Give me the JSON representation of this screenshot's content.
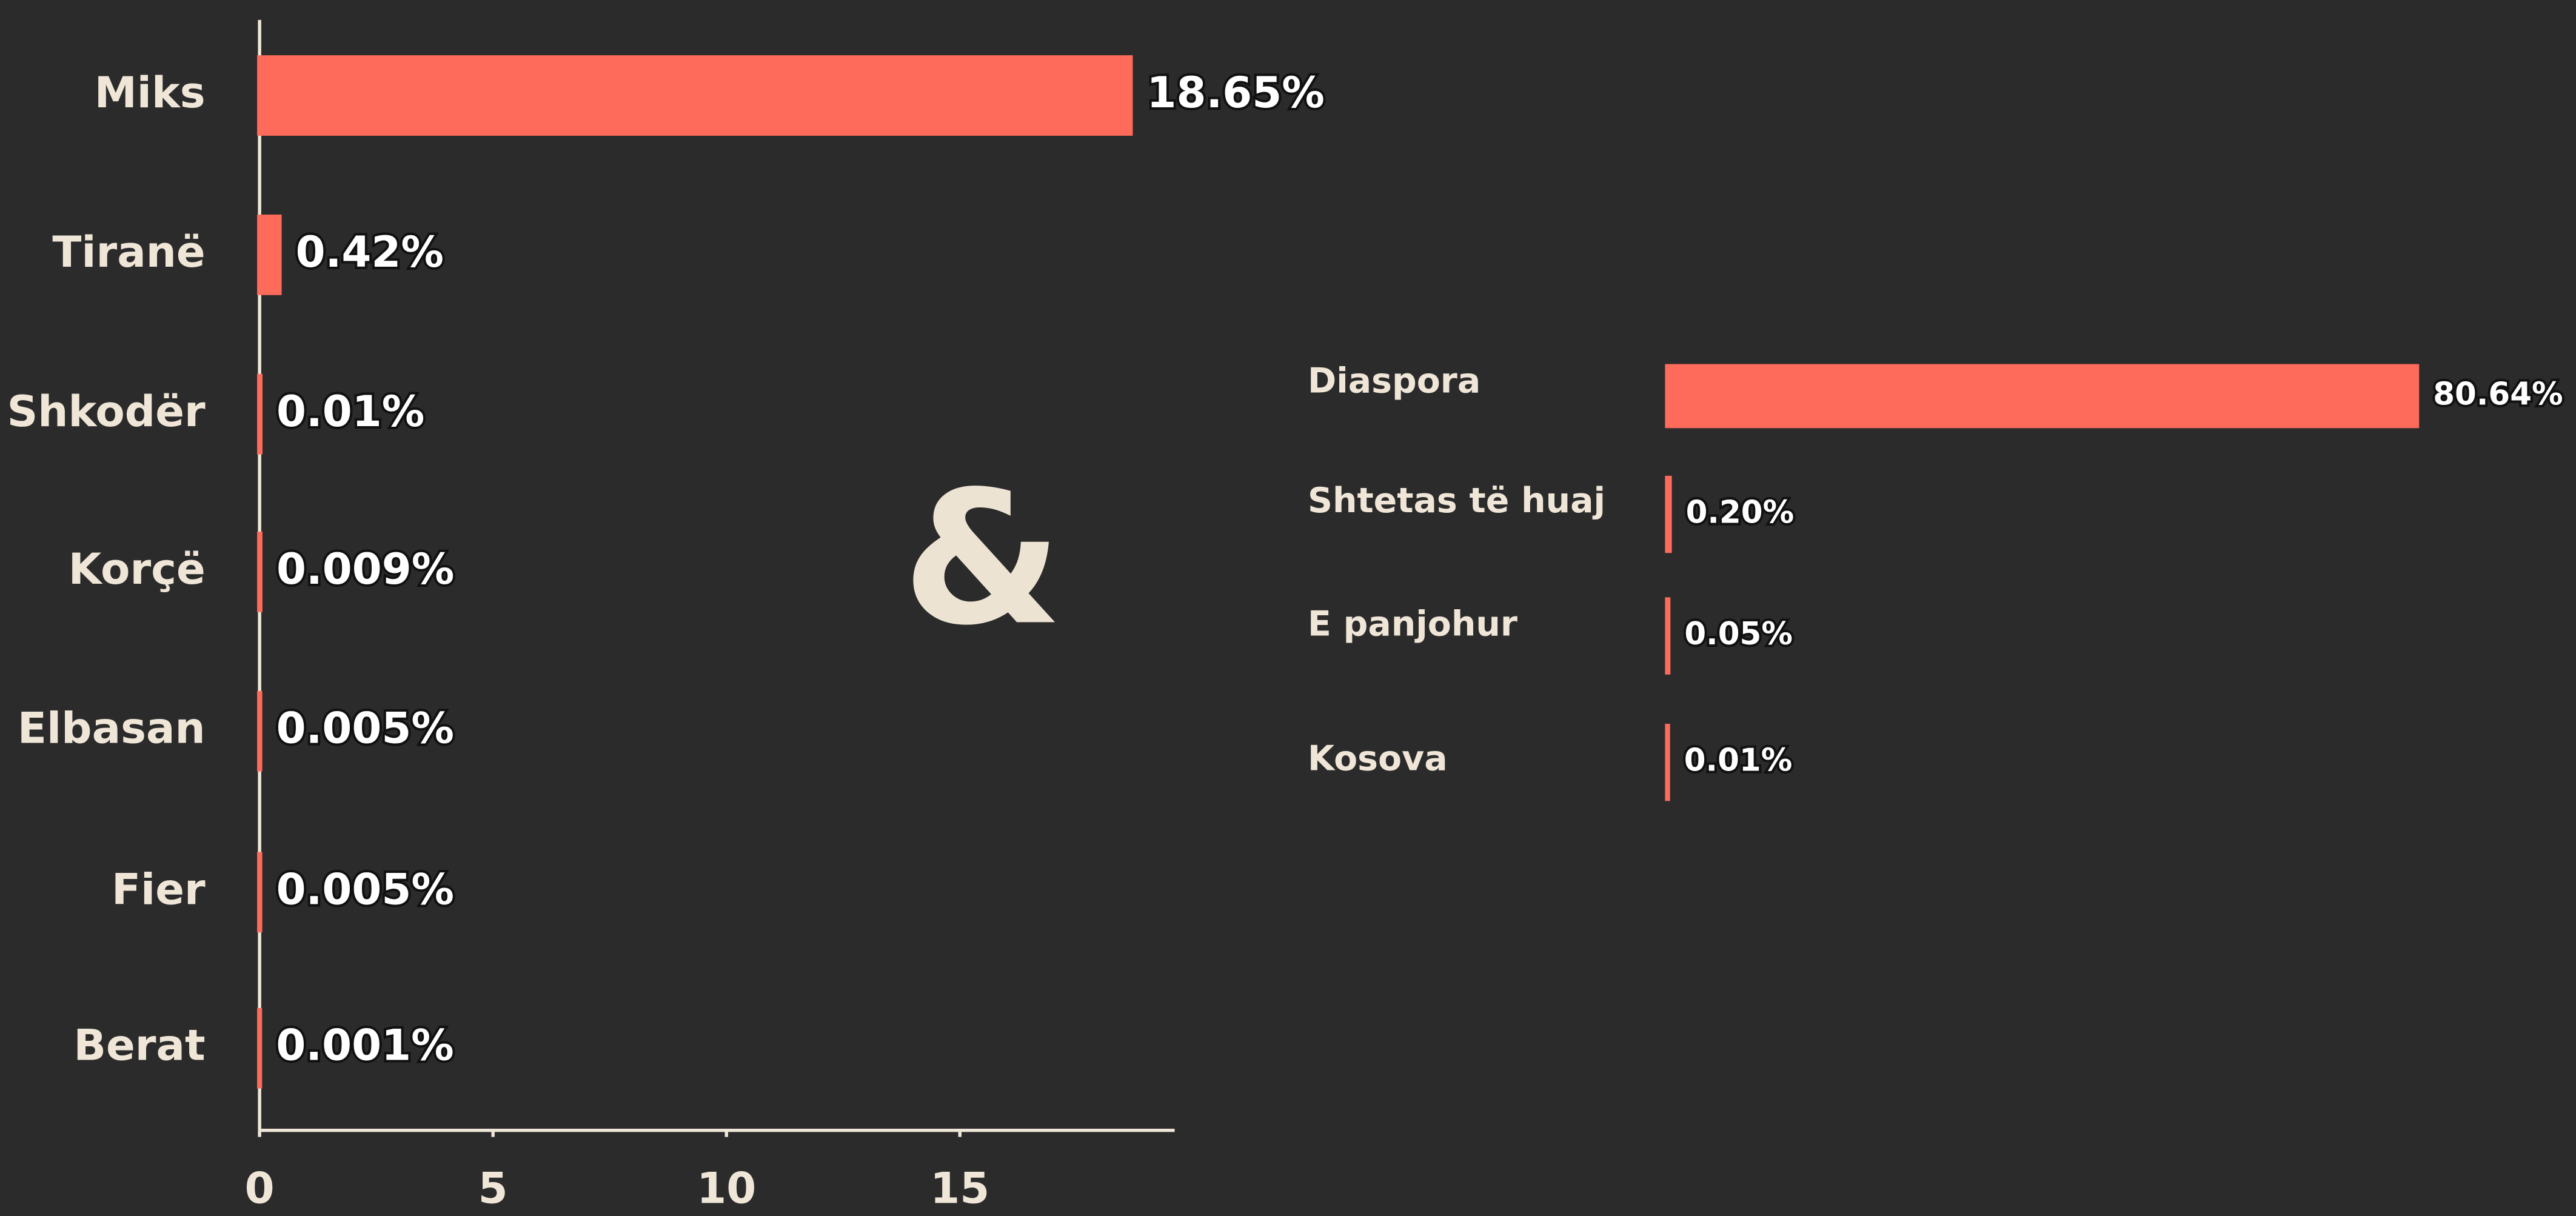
{
  "chart_data": [
    {
      "type": "hbar",
      "categories": [
        "Miks",
        "Tiranë",
        "Shkodër",
        "Korçë",
        "Elbasan",
        "Fier",
        "Berat"
      ],
      "values": [
        18.65,
        0.42,
        0.01,
        0.009,
        0.005,
        0.005,
        0.001
      ],
      "value_labels": [
        "18.65%",
        "0.42%",
        "0.01%",
        "0.009%",
        "0.005%",
        "0.005%",
        "0.001%"
      ],
      "color": "#ff6b5b",
      "xlim": [
        0,
        19.6
      ],
      "xticks": [
        0,
        5,
        10,
        15
      ]
    },
    {
      "type": "hbar",
      "categories": [
        "Diaspora",
        "Shtetas të huaj",
        "E panjohur",
        "Kosova"
      ],
      "values": [
        80.64,
        0.2,
        0.05,
        0.01
      ],
      "value_labels": [
        "80.64%",
        "0.20%",
        "0.05%",
        "0.01%"
      ],
      "color": "#ff6b5b"
    }
  ],
  "annotation": "&"
}
